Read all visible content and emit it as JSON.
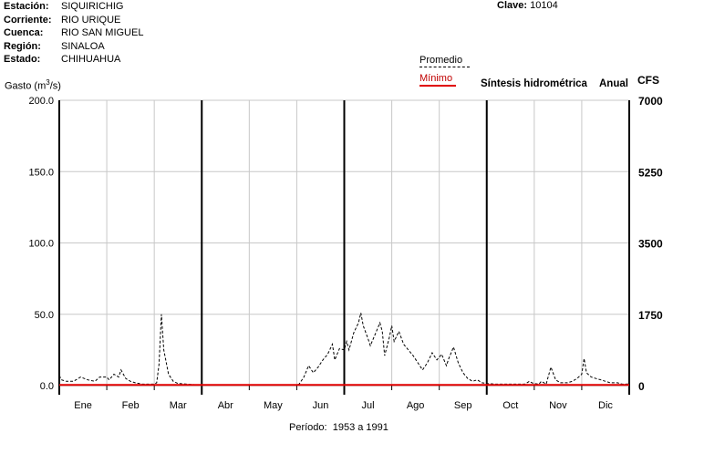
{
  "station": {
    "fields": [
      {
        "label": "Estación:",
        "value": "SIQUIRICHIG"
      },
      {
        "label": "Corriente:",
        "value": "RIO URIQUE"
      },
      {
        "label": "Cuenca:",
        "value": "RIO SAN MIGUEL"
      },
      {
        "label": "Región:",
        "value": "SINALOA"
      },
      {
        "label": "Estado:",
        "value": "CHIHUAHUA"
      }
    ],
    "clave_label": "Clave:",
    "clave_value": "10104"
  },
  "chart_data": {
    "type": "line",
    "title": "Síntesis hidrométrica",
    "subtitle": "Anual",
    "ylabel_left_prefix": "Gasto (m",
    "ylabel_left_sup": "3",
    "ylabel_left_suffix": "/s)",
    "ylabel_right": "CFS",
    "ylim": [
      0,
      200
    ],
    "left_ticks": [
      "0.0",
      "50.0",
      "100.0",
      "150.0",
      "200.0"
    ],
    "left_tick_values": [
      0,
      50,
      100,
      150,
      200
    ],
    "right_ticks": [
      "0",
      "1750",
      "3500",
      "5250",
      "7000"
    ],
    "months": [
      "Ene",
      "Feb",
      "Mar",
      "Abr",
      "May",
      "Jun",
      "Jul",
      "Ago",
      "Sep",
      "Oct",
      "Nov",
      "Dic"
    ],
    "grid": true,
    "period_label": "Período:",
    "period_value": "1953 a 1991",
    "colors": {
      "promedio": "#000000",
      "minimo": "#e00000",
      "grid": "#c8c8c8"
    },
    "series": [
      {
        "name": "Promedio",
        "style": "dashed",
        "points": [
          [
            0,
            7
          ],
          [
            0.05,
            4
          ],
          [
            0.15,
            3
          ],
          [
            0.3,
            3
          ],
          [
            0.45,
            6
          ],
          [
            0.6,
            4
          ],
          [
            0.75,
            3
          ],
          [
            0.85,
            6
          ],
          [
            1.0,
            6
          ],
          [
            1.05,
            4
          ],
          [
            1.15,
            8
          ],
          [
            1.25,
            6
          ],
          [
            1.3,
            11
          ],
          [
            1.4,
            5
          ],
          [
            1.5,
            3
          ],
          [
            1.6,
            2
          ],
          [
            1.75,
            1
          ],
          [
            1.9,
            1
          ],
          [
            2.0,
            1
          ],
          [
            2.05,
            2
          ],
          [
            2.1,
            15
          ],
          [
            2.15,
            50
          ],
          [
            2.2,
            25
          ],
          [
            2.3,
            8
          ],
          [
            2.4,
            3
          ],
          [
            2.5,
            1.5
          ],
          [
            2.7,
            1
          ],
          [
            2.9,
            0.5
          ],
          [
            3.0,
            0.5
          ],
          [
            4.0,
            0.3
          ],
          [
            5.0,
            0.5
          ],
          [
            5.05,
            1
          ],
          [
            5.15,
            6
          ],
          [
            5.25,
            14
          ],
          [
            5.35,
            9
          ],
          [
            5.45,
            13
          ],
          [
            5.55,
            18
          ],
          [
            5.65,
            22
          ],
          [
            5.75,
            29
          ],
          [
            5.8,
            18
          ],
          [
            5.9,
            26
          ],
          [
            6.0,
            25
          ],
          [
            6.05,
            31
          ],
          [
            6.1,
            25
          ],
          [
            6.2,
            37
          ],
          [
            6.3,
            44
          ],
          [
            6.35,
            51
          ],
          [
            6.4,
            42
          ],
          [
            6.5,
            33
          ],
          [
            6.55,
            28
          ],
          [
            6.65,
            36
          ],
          [
            6.75,
            44
          ],
          [
            6.8,
            38
          ],
          [
            6.85,
            21
          ],
          [
            6.95,
            34
          ],
          [
            7.0,
            42
          ],
          [
            7.05,
            31
          ],
          [
            7.15,
            38
          ],
          [
            7.25,
            29
          ],
          [
            7.35,
            25
          ],
          [
            7.45,
            21
          ],
          [
            7.55,
            16
          ],
          [
            7.65,
            11
          ],
          [
            7.75,
            16
          ],
          [
            7.85,
            23
          ],
          [
            7.95,
            18
          ],
          [
            8.05,
            22
          ],
          [
            8.15,
            14
          ],
          [
            8.2,
            19
          ],
          [
            8.3,
            27
          ],
          [
            8.4,
            16
          ],
          [
            8.5,
            9
          ],
          [
            8.6,
            5
          ],
          [
            8.7,
            3
          ],
          [
            8.8,
            4
          ],
          [
            8.9,
            2
          ],
          [
            9.0,
            1.5
          ],
          [
            9.2,
            1
          ],
          [
            9.5,
            1
          ],
          [
            9.8,
            1
          ],
          [
            9.9,
            3
          ],
          [
            9.95,
            2
          ],
          [
            10.0,
            1.5
          ],
          [
            10.1,
            1
          ],
          [
            10.15,
            3
          ],
          [
            10.25,
            1
          ],
          [
            10.35,
            13
          ],
          [
            10.45,
            4
          ],
          [
            10.55,
            2
          ],
          [
            10.7,
            2
          ],
          [
            10.8,
            3
          ],
          [
            10.9,
            5
          ],
          [
            11.0,
            8
          ],
          [
            11.05,
            19
          ],
          [
            11.1,
            9
          ],
          [
            11.2,
            6
          ],
          [
            11.3,
            5
          ],
          [
            11.4,
            4
          ],
          [
            11.5,
            3
          ],
          [
            11.6,
            2
          ],
          [
            11.75,
            2
          ],
          [
            11.85,
            1
          ],
          [
            11.95,
            1
          ],
          [
            12.0,
            2
          ]
        ]
      },
      {
        "name": "Mínimo",
        "style": "solid",
        "points": [
          [
            0,
            0.5
          ],
          [
            12,
            0.5
          ]
        ]
      }
    ]
  }
}
